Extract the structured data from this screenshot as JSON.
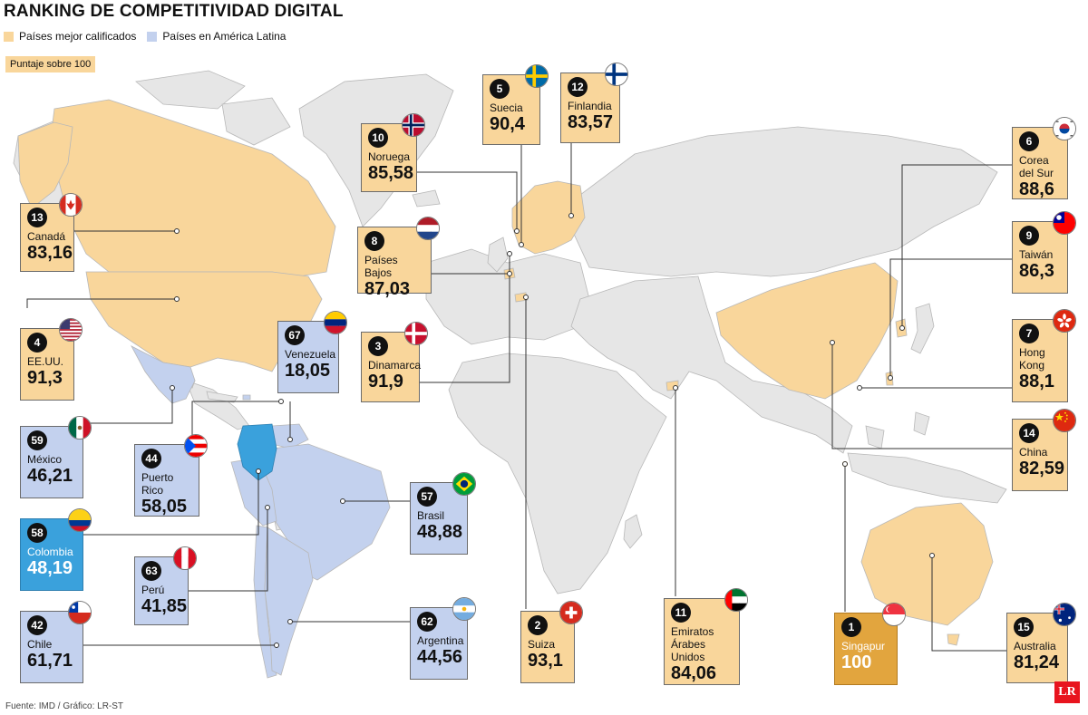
{
  "title": "RANKING DE COMPETITIVIDAD DIGITAL",
  "legend": [
    {
      "label": "Países mejor calificados",
      "color": "#f9d69b"
    },
    {
      "label": "Países en América Latina",
      "color": "#c3d1ee"
    }
  ],
  "scale_note": "Puntaje sobre 100",
  "source": "Fuente: IMD / Gráfico: LR-ST",
  "logo": "LR",
  "colors": {
    "top": "#f9d69b",
    "latam": "#c3d1ee",
    "colombia": "#3aa1dc",
    "singapur": "#e2a53e",
    "land": "#e6e6e6"
  },
  "countries": [
    {
      "rank": "13",
      "name": "Canadá",
      "score": "83,16",
      "group": "top",
      "flag": "canada-flag-icon"
    },
    {
      "rank": "4",
      "name": "EE.UU.",
      "score": "91,3",
      "group": "top",
      "flag": "usa-flag-icon"
    },
    {
      "rank": "59",
      "name": "México",
      "score": "46,21",
      "group": "latam",
      "flag": "mexico-flag-icon"
    },
    {
      "rank": "58",
      "name": "Colombia",
      "score": "48,19",
      "group": "colombia",
      "flag": "colombia-flag-icon"
    },
    {
      "rank": "42",
      "name": "Chile",
      "score": "61,71",
      "group": "latam",
      "flag": "chile-flag-icon"
    },
    {
      "rank": "67",
      "name": "Venezuela",
      "score": "18,05",
      "group": "latam",
      "flag": "venezuela-flag-icon"
    },
    {
      "rank": "44",
      "name": "Puerto Rico",
      "score": "58,05",
      "group": "latam",
      "flag": "puerto-rico-flag-icon"
    },
    {
      "rank": "63",
      "name": "Perú",
      "score": "41,85",
      "group": "latam",
      "flag": "peru-flag-icon"
    },
    {
      "rank": "57",
      "name": "Brasil",
      "score": "48,88",
      "group": "latam",
      "flag": "brazil-flag-icon"
    },
    {
      "rank": "62",
      "name": "Argentina",
      "score": "44,56",
      "group": "latam",
      "flag": "argentina-flag-icon"
    },
    {
      "rank": "10",
      "name": "Noruega",
      "score": "85,58",
      "group": "top",
      "flag": "norway-flag-icon"
    },
    {
      "rank": "8",
      "name": "Países Bajos",
      "score": "87,03",
      "group": "top",
      "flag": "netherlands-flag-icon"
    },
    {
      "rank": "3",
      "name": "Dinamarca",
      "score": "91,9",
      "group": "top",
      "flag": "denmark-flag-icon"
    },
    {
      "rank": "5",
      "name": "Suecia",
      "score": "90,4",
      "group": "top",
      "flag": "sweden-flag-icon"
    },
    {
      "rank": "12",
      "name": "Finlandia",
      "score": "83,57",
      "group": "top",
      "flag": "finland-flag-icon"
    },
    {
      "rank": "2",
      "name": "Suiza",
      "score": "93,1",
      "group": "top",
      "flag": "switzerland-flag-icon"
    },
    {
      "rank": "11",
      "name": "Emiratos Árabes Unidos",
      "score": "84,06",
      "group": "top",
      "flag": "uae-flag-icon"
    },
    {
      "rank": "1",
      "name": "Singapur",
      "score": "100",
      "group": "singapur",
      "flag": "singapore-flag-icon"
    },
    {
      "rank": "15",
      "name": "Australia",
      "score": "81,24",
      "group": "top",
      "flag": "australia-flag-icon"
    },
    {
      "rank": "6",
      "name": "Corea del Sur",
      "score": "88,6",
      "group": "top",
      "flag": "south-korea-flag-icon"
    },
    {
      "rank": "9",
      "name": "Taiwán",
      "score": "86,3",
      "group": "top",
      "flag": "taiwan-flag-icon"
    },
    {
      "rank": "7",
      "name": "Hong Kong",
      "score": "88,1",
      "group": "top",
      "flag": "hong-kong-flag-icon"
    },
    {
      "rank": "14",
      "name": "China",
      "score": "82,59",
      "group": "top",
      "flag": "china-flag-icon"
    }
  ]
}
